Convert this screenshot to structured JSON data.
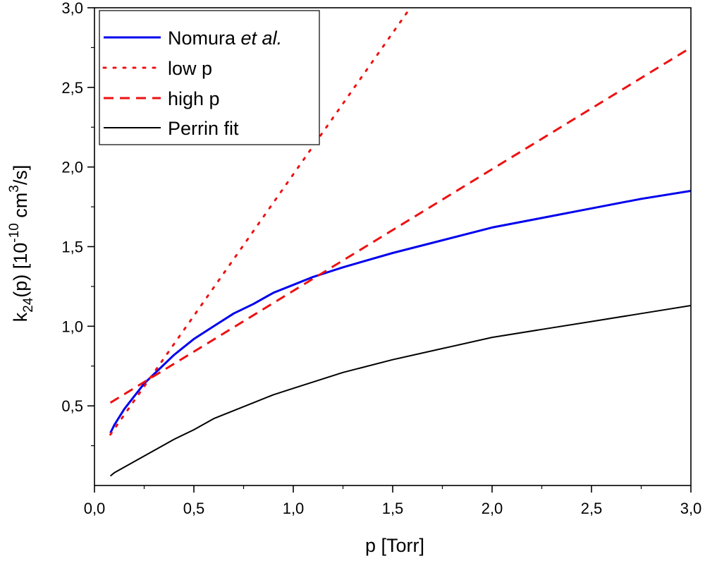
{
  "chart_data": {
    "type": "line",
    "xlabel": "p [Torr]",
    "ylabel_parts": {
      "k": "k",
      "k_sub": "24",
      "mid": "(p) [10",
      "exp1": "-10",
      "unit": " cm",
      "exp2": "3",
      "tail": "/s]"
    },
    "xlim": [
      0.0,
      3.0
    ],
    "ylim": [
      0.0,
      3.0
    ],
    "x_ticks": [
      {
        "value": 0.0,
        "label": "0,0"
      },
      {
        "value": 0.5,
        "label": "0,5"
      },
      {
        "value": 1.0,
        "label": "1,0"
      },
      {
        "value": 1.5,
        "label": "1,5"
      },
      {
        "value": 2.0,
        "label": "2,0"
      },
      {
        "value": 2.5,
        "label": "2,5"
      },
      {
        "value": 3.0,
        "label": "3,0"
      }
    ],
    "y_ticks": [
      {
        "value": 0.5,
        "label": "0,5"
      },
      {
        "value": 1.0,
        "label": "1,0"
      },
      {
        "value": 1.5,
        "label": "1,5"
      },
      {
        "value": 2.0,
        "label": "2,0"
      },
      {
        "value": 2.5,
        "label": "2,5"
      },
      {
        "value": 3.0,
        "label": "3,0"
      }
    ],
    "grid": false,
    "legend_position": "top-left",
    "series": [
      {
        "name": "Nomura ",
        "name_italic": "et al.",
        "color": "#0000ee",
        "style": "solid",
        "x": [
          0.08,
          0.1,
          0.15,
          0.2,
          0.25,
          0.3,
          0.4,
          0.5,
          0.6,
          0.7,
          0.8,
          0.9,
          1.0,
          1.1,
          1.25,
          1.5,
          1.75,
          2.0,
          2.25,
          2.5,
          2.75,
          3.0
        ],
        "y": [
          0.33,
          0.38,
          0.48,
          0.56,
          0.64,
          0.7,
          0.82,
          0.92,
          1.0,
          1.08,
          1.14,
          1.21,
          1.26,
          1.31,
          1.37,
          1.46,
          1.54,
          1.62,
          1.68,
          1.74,
          1.8,
          1.85
        ]
      },
      {
        "name": "low p",
        "color": "#ee1111",
        "style": "dotted",
        "x": [
          0.08,
          1.6
        ],
        "y": [
          0.32,
          3.02
        ]
      },
      {
        "name": "high p",
        "color": "#ee1111",
        "style": "dashed",
        "x": [
          0.08,
          3.0
        ],
        "y": [
          0.52,
          2.75
        ]
      },
      {
        "name": "Perrin fit",
        "color": "#000000",
        "style": "solid",
        "x": [
          0.08,
          0.1,
          0.2,
          0.3,
          0.4,
          0.5,
          0.6,
          0.7,
          0.8,
          0.9,
          1.0,
          1.25,
          1.5,
          1.75,
          2.0,
          2.25,
          2.5,
          2.75,
          3.0
        ],
        "y": [
          0.06,
          0.08,
          0.15,
          0.22,
          0.29,
          0.35,
          0.42,
          0.47,
          0.52,
          0.57,
          0.61,
          0.71,
          0.79,
          0.86,
          0.93,
          0.98,
          1.03,
          1.08,
          1.13
        ]
      }
    ]
  }
}
